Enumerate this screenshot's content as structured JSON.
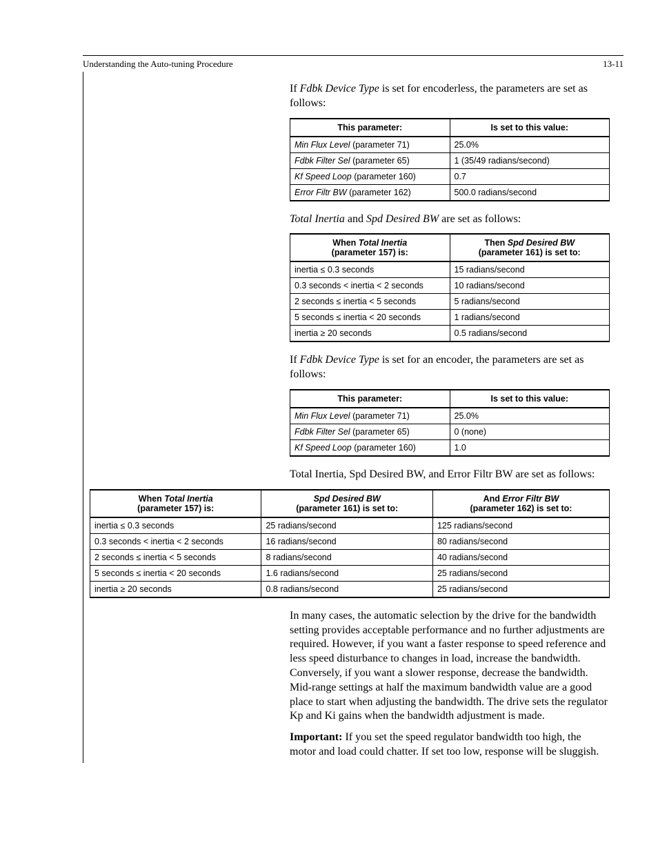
{
  "header": {
    "title": "Understanding the Auto-tuning Procedure",
    "page": "13-11"
  },
  "para1_a": "If ",
  "para1_b": "Fdbk Device Type",
  "para1_c": " is set for encoderless, the parameters are set as follows:",
  "table1": {
    "h1": "This parameter:",
    "h2": "Is set to this value:",
    "rows": [
      {
        "p": "Min Flux Level",
        "suf": " (parameter 71)",
        "v": "25.0%"
      },
      {
        "p": "Fdbk Filter Sel",
        "suf": " (parameter 65)",
        "v": "1 (35/49 radians/second)"
      },
      {
        "p": "Kf Speed Loop",
        "suf": " (parameter 160)",
        "v": "0.7"
      },
      {
        "p": "Error Filtr BW",
        "suf": " (parameter 162)",
        "v": "500.0 radians/second"
      }
    ]
  },
  "para2_a": "Total Inertia",
  "para2_b": " and ",
  "para2_c": "Spd Desired BW",
  "para2_d": " are set as follows:",
  "table2": {
    "h1a": "When ",
    "h1b": "Total Inertia",
    "h1c": "(parameter 157) is:",
    "h2a": "Then ",
    "h2b": "Spd Desired BW",
    "h2c": "(parameter 161) is set to:",
    "rows": [
      {
        "c1": "inertia ≤ 0.3 seconds",
        "c2": "15 radians/second"
      },
      {
        "c1": "0.3 seconds < inertia < 2 seconds",
        "c2": "10 radians/second"
      },
      {
        "c1": "2 seconds ≤ inertia < 5 seconds",
        "c2": "5 radians/second"
      },
      {
        "c1": "5 seconds ≤ inertia < 20 seconds",
        "c2": "1 radians/second"
      },
      {
        "c1": "inertia ≥ 20 seconds",
        "c2": "0.5 radians/second"
      }
    ]
  },
  "para3_a": "If ",
  "para3_b": "Fdbk Device Type",
  "para3_c": " is set for an encoder, the parameters are set as follows:",
  "table3": {
    "h1": "This parameter:",
    "h2": "Is set to this value:",
    "rows": [
      {
        "p": "Min Flux Level",
        "suf": " (parameter 71)",
        "v": "25.0%"
      },
      {
        "p": "Fdbk Filter Sel",
        "suf": " (parameter 65)",
        "v": "0 (none)"
      },
      {
        "p": "Kf Speed Loop",
        "suf": " (parameter 160)",
        "v": "1.0"
      }
    ]
  },
  "para4": "Total Inertia, Spd Desired BW, and Error Filtr BW are set as follows:",
  "table4": {
    "h1a": "When ",
    "h1b": "Total Inertia",
    "h1c": "(parameter 157) is:",
    "h2b": "Spd Desired BW",
    "h2c": "(parameter 161) is set to:",
    "h3a": "And ",
    "h3b": "Error Filtr BW",
    "h3c": "(parameter 162) is set to:",
    "rows": [
      {
        "c1": "inertia ≤ 0.3 seconds",
        "c2": "25 radians/second",
        "c3": "125 radians/second"
      },
      {
        "c1": "0.3 seconds < inertia < 2 seconds",
        "c2": "16 radians/second",
        "c3": "80 radians/second"
      },
      {
        "c1": "2 seconds ≤ inertia < 5 seconds",
        "c2": "8 radians/second",
        "c3": "40 radians/second"
      },
      {
        "c1": "5 seconds ≤ inertia < 20 seconds",
        "c2": "1.6 radians/second",
        "c3": "25 radians/second"
      },
      {
        "c1": "inertia ≥ 20 seconds",
        "c2": "0.8 radians/second",
        "c3": "25 radians/second"
      }
    ]
  },
  "para5": "In many cases, the automatic selection by the drive for the bandwidth setting provides acceptable performance and no further adjustments are required. However, if you want a faster response to speed reference and less speed disturbance to changes in load, increase the bandwidth. Conversely, if you want a slower response, decrease the bandwidth. Mid-range settings at half the maximum bandwidth value are a good place to start when adjusting the bandwidth. The drive sets the regulator Kp and Ki gains when the bandwidth adjustment is made.",
  "para6_a": "Important:",
  "para6_b": " If you set the speed regulator bandwidth too high, the motor and load could chatter. If set too low, response will be sluggish."
}
